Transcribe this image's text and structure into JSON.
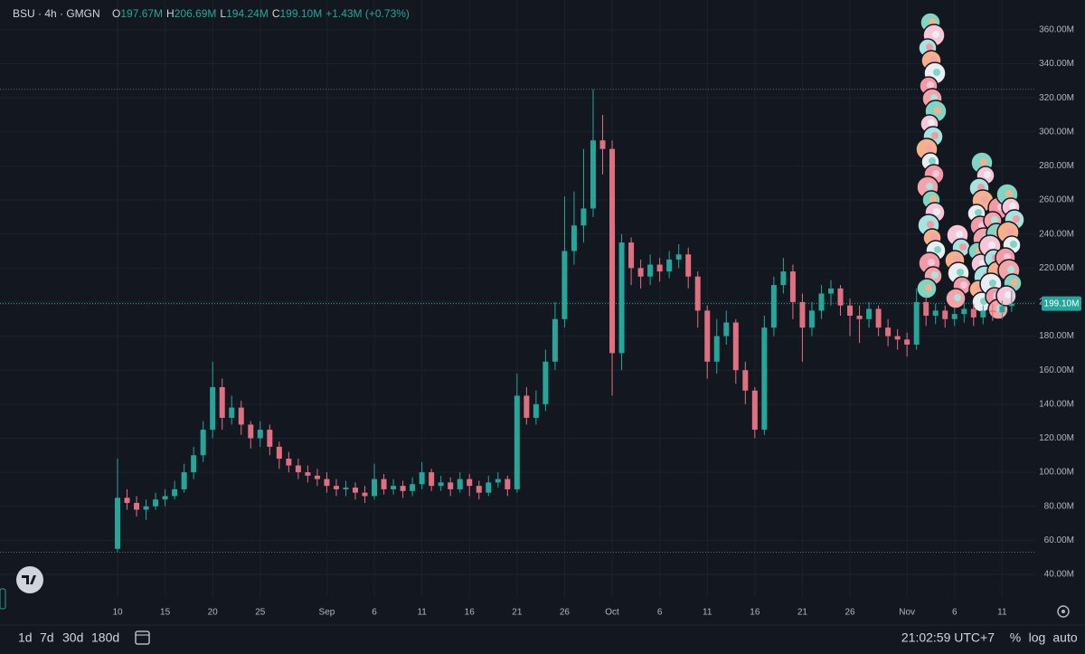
{
  "header": {
    "symbol": "BSU · 4h · GMGN",
    "ohlc": [
      {
        "label": "O",
        "value": "197.67M"
      },
      {
        "label": "H",
        "value": "206.69M"
      },
      {
        "label": "L",
        "value": "194.24M"
      },
      {
        "label": "C",
        "value": "199.10M"
      }
    ],
    "change": "+1.43M (+0.73%)"
  },
  "chart_data": {
    "type": "candlestick",
    "categories": [
      "10",
      null,
      null,
      null,
      null,
      "15",
      null,
      null,
      null,
      null,
      "20",
      null,
      null,
      null,
      null,
      "25",
      null,
      null,
      null,
      null,
      null,
      null,
      "Sep",
      null,
      null,
      null,
      null,
      "6",
      null,
      null,
      null,
      null,
      "11",
      null,
      null,
      null,
      null,
      "16",
      null,
      null,
      null,
      null,
      "21",
      null,
      null,
      null,
      null,
      "26",
      null,
      null,
      null,
      null,
      "Oct",
      null,
      null,
      null,
      null,
      "6",
      null,
      null,
      null,
      null,
      "11",
      null,
      null,
      null,
      null,
      "16",
      null,
      null,
      null,
      null,
      "21",
      null,
      null,
      null,
      null,
      "26",
      null,
      null,
      null,
      null,
      null,
      "Nov",
      null,
      null,
      null,
      null,
      "6",
      null,
      null,
      null,
      null,
      "11",
      null
    ],
    "open": [
      55,
      85,
      82,
      78,
      80,
      84,
      86,
      90,
      100,
      110,
      125,
      150,
      132,
      138,
      128,
      120,
      125,
      115,
      108,
      104,
      100,
      98,
      96,
      92,
      90,
      91,
      88,
      86,
      96,
      90,
      92,
      89,
      93,
      100,
      92,
      94,
      90,
      96,
      92,
      88,
      94,
      96,
      90,
      145,
      132,
      140,
      165,
      190,
      230,
      245,
      255,
      295,
      290,
      170,
      235,
      220,
      215,
      222,
      218,
      225,
      228,
      215,
      195,
      165,
      180,
      188,
      160,
      148,
      125,
      185,
      210,
      218,
      200,
      185,
      195,
      205,
      208,
      198,
      192,
      190,
      196,
      185,
      180,
      178,
      175,
      200,
      192,
      195,
      190,
      193,
      196,
      191,
      195,
      194,
      197.67
    ],
    "high": [
      108,
      90,
      86,
      84,
      88,
      90,
      95,
      105,
      115,
      130,
      165,
      155,
      145,
      142,
      130,
      130,
      128,
      118,
      112,
      108,
      104,
      102,
      100,
      96,
      95,
      94,
      92,
      105,
      99,
      96,
      95,
      97,
      106,
      102,
      98,
      97,
      100,
      99,
      95,
      98,
      100,
      98,
      158,
      150,
      148,
      172,
      200,
      262,
      265,
      290,
      325,
      310,
      295,
      240,
      238,
      225,
      228,
      226,
      230,
      234,
      232,
      218,
      198,
      190,
      195,
      190,
      165,
      150,
      192,
      215,
      226,
      222,
      205,
      200,
      210,
      213,
      210,
      202,
      198,
      200,
      198,
      190,
      184,
      182,
      208,
      204,
      199,
      198,
      197,
      200,
      199,
      198,
      199,
      201,
      206.69
    ],
    "low": [
      53,
      78,
      74,
      72,
      78,
      80,
      84,
      88,
      96,
      106,
      120,
      125,
      128,
      122,
      114,
      115,
      110,
      102,
      100,
      96,
      94,
      92,
      88,
      86,
      86,
      84,
      82,
      84,
      87,
      87,
      85,
      86,
      90,
      89,
      89,
      86,
      88,
      86,
      84,
      86,
      91,
      86,
      88,
      128,
      128,
      136,
      160,
      185,
      222,
      235,
      250,
      275,
      145,
      160,
      210,
      208,
      210,
      212,
      214,
      220,
      208,
      185,
      155,
      158,
      175,
      152,
      140,
      120,
      122,
      180,
      205,
      190,
      165,
      180,
      190,
      198,
      192,
      180,
      176,
      185,
      180,
      174,
      172,
      168,
      172,
      186,
      187,
      185,
      186,
      188,
      186,
      187,
      189,
      190,
      194.24
    ],
    "close": [
      85,
      82,
      78,
      80,
      84,
      86,
      90,
      100,
      110,
      125,
      150,
      132,
      138,
      128,
      120,
      125,
      115,
      108,
      104,
      100,
      98,
      96,
      92,
      90,
      91,
      88,
      86,
      96,
      90,
      92,
      89,
      93,
      100,
      92,
      94,
      90,
      96,
      92,
      88,
      94,
      96,
      90,
      145,
      132,
      140,
      165,
      190,
      230,
      245,
      255,
      295,
      290,
      170,
      235,
      220,
      215,
      222,
      218,
      225,
      228,
      215,
      195,
      165,
      180,
      188,
      160,
      148,
      125,
      185,
      210,
      218,
      200,
      185,
      195,
      205,
      208,
      198,
      192,
      190,
      196,
      185,
      180,
      178,
      175,
      200,
      192,
      195,
      190,
      193,
      196,
      191,
      195,
      194,
      197.67,
      199.1
    ],
    "last_label": "199.10M",
    "up_color": "#26a69a",
    "down_color": "#e0707f",
    "ylim": [
      26.7,
      377.5
    ],
    "yticks": [
      {
        "value": 40,
        "label": "40.00M"
      },
      {
        "value": 60,
        "label": "60.00M"
      },
      {
        "value": 80,
        "label": "80.00M"
      },
      {
        "value": 100,
        "label": "100.00M"
      },
      {
        "value": 120,
        "label": "120.00M"
      },
      {
        "value": 140,
        "label": "140.00M"
      },
      {
        "value": 160,
        "label": "160.00M"
      },
      {
        "value": 180,
        "label": "180.00M"
      },
      {
        "value": 200,
        "label": "200.00M"
      },
      {
        "value": 220,
        "label": "220.00M"
      },
      {
        "value": 240,
        "label": "240.00M"
      },
      {
        "value": 260,
        "label": "260.00M"
      },
      {
        "value": 280,
        "label": "280.00M"
      },
      {
        "value": 300,
        "label": "300.00M"
      },
      {
        "value": 320,
        "label": "320.00M"
      },
      {
        "value": 340,
        "label": "340.00M"
      },
      {
        "value": 360,
        "label": "360.00M"
      }
    ],
    "grid": true
  },
  "toolbar": {
    "ranges": [
      "1d",
      "7d",
      "30d",
      "180d"
    ],
    "clock": "21:02:59 UTC+7",
    "options": [
      "%",
      "log",
      "auto"
    ]
  }
}
